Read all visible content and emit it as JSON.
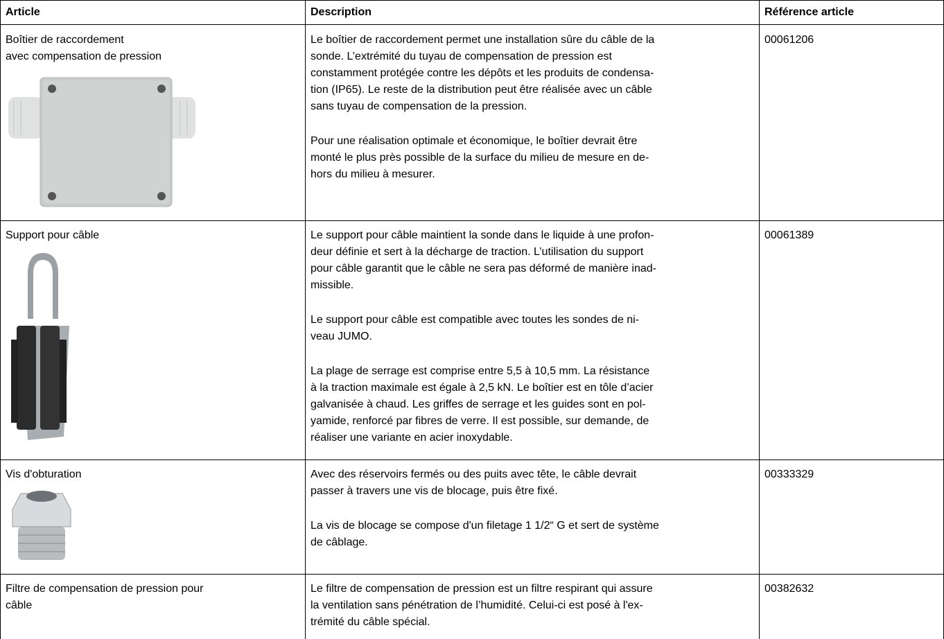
{
  "table": {
    "header": [
      "Article",
      "Description",
      "Référence article"
    ],
    "rows": [
      {
        "article": [
          "Boîtier de raccordement",
          "avec compensation de pression"
        ],
        "description": [
          [
            "Le boîtier de raccordement permet une installation sûre du câble de la",
            "sonde. L’extrémité du tuyau de compensation de pression est",
            "constamment protégée contre les dépôts et les produits de condensa-",
            "tion (IP65). Le reste de la distribution peut être réalisée avec un câble",
            "sans tuyau de compensation de la pression."
          ],
          [
            "Pour une réalisation optimale et économique, le boîtier devrait être",
            "monté le plus près possible de la surface du milieu de mesure en de-",
            "hors du milieu à mesurer."
          ]
        ],
        "reference": "00061206"
      },
      {
        "article": [
          "Support pour câble"
        ],
        "description": [
          [
            "Le support pour câble maintient la sonde dans le liquide à une profon-",
            "deur définie et sert à la décharge de traction. L’utilisation du support",
            "pour câble garantit que le câble ne sera pas déformé de manière inad-",
            "missible."
          ],
          [
            "Le support pour câble est compatible avec toutes les sondes de ni-",
            "veau JUMO."
          ],
          [
            "La plage de serrage est comprise entre 5,5 à 10,5 mm. La résistance",
            "à la traction maximale est égale à 2,5 kN. Le boîtier est en tôle d’acier",
            "galvanisée à chaud. Les griffes de serrage et les guides sont en pol-",
            "yamide, renforcé par fibres de verre. Il est possible, sur demande, de",
            "réaliser une variante en acier inoxydable."
          ]
        ],
        "reference": "00061389"
      },
      {
        "article": [
          "Vis d'obturation"
        ],
        "description": [
          [
            "Avec des réservoirs fermés ou des puits avec tête, le câble devrait",
            "passer à travers une vis de blocage, puis être fixé."
          ],
          [
            "La vis de blocage se compose d'un filetage 1 1/2“ G et sert de système",
            "de câblage."
          ]
        ],
        "reference": "00333329"
      },
      {
        "article": [
          "Filtre de compensation de pression pour",
          "câble"
        ],
        "description": [
          [
            "Le filtre de compensation de pression est un filtre respirant qui assure",
            "la ventilation sans pénétration de l’humidité. Celui-ci est posé à l'ex-",
            "trémité du câble spécial."
          ]
        ],
        "reference": "00382632"
      }
    ]
  }
}
